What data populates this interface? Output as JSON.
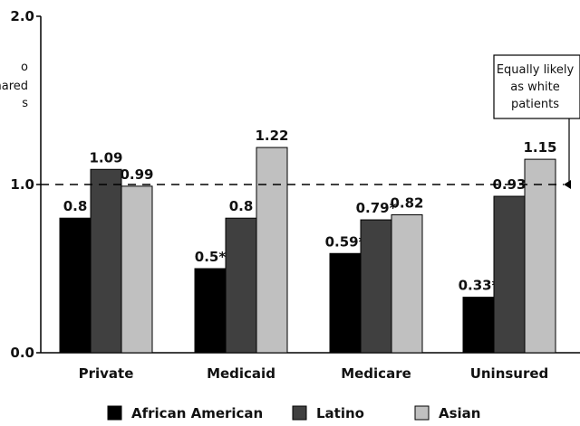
{
  "chart_data": {
    "type": "bar",
    "categories": [
      "Private",
      "Medicaid",
      "Medicare",
      "Uninsured"
    ],
    "series": [
      {
        "name": "African American",
        "color": "#000000",
        "values": [
          0.8,
          0.5,
          0.59,
          0.33
        ],
        "labels": [
          "0.8",
          "0.5*",
          "0.59*",
          "0.33*"
        ]
      },
      {
        "name": "Latino",
        "color": "#404040",
        "values": [
          1.09,
          0.8,
          0.79,
          0.93
        ],
        "labels": [
          "1.09",
          "0.8",
          "0.79*",
          "0.93"
        ]
      },
      {
        "name": "Asian",
        "color": "#c0c0c0",
        "values": [
          0.99,
          1.22,
          0.82,
          1.15
        ],
        "labels": [
          "0.99",
          "1.22",
          "0.82",
          "1.15"
        ]
      }
    ],
    "ylim": [
      0,
      2.0
    ],
    "yticks": [
      {
        "value": 0.0,
        "label": "0.0"
      },
      {
        "value": 1.0,
        "label": "1.0"
      },
      {
        "value": 2.0,
        "label": "2.0"
      }
    ],
    "ylabel_lines": [
      "o",
      "nared",
      "s"
    ],
    "reference_line": {
      "value": 1.0,
      "style": "dashed"
    },
    "annotation": {
      "lines": [
        "Equally likely",
        "as white",
        "patients"
      ]
    },
    "legend_position": "bottom",
    "grid": false
  }
}
